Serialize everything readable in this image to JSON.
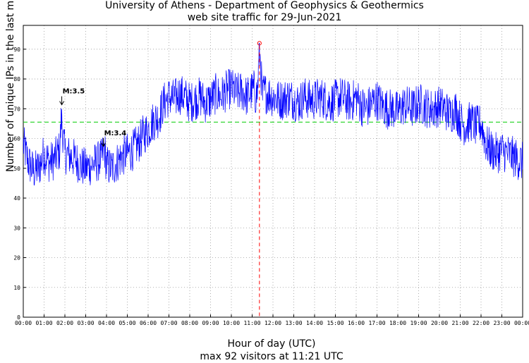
{
  "chart_data": {
    "type": "line",
    "title": "University of Athens - Department of Geophysics & Geothermics",
    "subtitle": "web site traffic for 29-Jun-2021",
    "xlabel": "Hour of day (UTC)",
    "ylabel": "Number of unique IPs in the last minute",
    "footer": "max 92 visitors at 11:21 UTC",
    "xlim": [
      0,
      24
    ],
    "ylim": [
      0,
      98
    ],
    "x_ticks": [
      "00:00",
      "01:00",
      "02:00",
      "03:00",
      "04:00",
      "05:00",
      "06:00",
      "07:00",
      "08:00",
      "09:00",
      "10:00",
      "11:00",
      "12:00",
      "13:00",
      "14:00",
      "15:00",
      "16:00",
      "17:00",
      "18:00",
      "19:00",
      "20:00",
      "21:00",
      "22:00",
      "23:00",
      "00:00"
    ],
    "y_ticks": [
      0,
      10,
      20,
      30,
      40,
      50,
      60,
      70,
      80,
      90
    ],
    "grid": true,
    "series": [
      {
        "color": "#0000ff",
        "x_hours": [
          0,
          0.25,
          0.5,
          0.75,
          1,
          1.25,
          1.5,
          1.75,
          1.83,
          2,
          2.25,
          2.5,
          2.75,
          3,
          3.25,
          3.5,
          3.75,
          3.9,
          4,
          4.25,
          4.5,
          4.75,
          5,
          5.25,
          5.5,
          5.75,
          6,
          6.25,
          6.5,
          6.75,
          7,
          7.25,
          7.5,
          7.75,
          8,
          8.25,
          8.5,
          8.75,
          9,
          9.25,
          9.5,
          9.75,
          10,
          10.25,
          10.5,
          10.75,
          11,
          11.25,
          11.35,
          11.5,
          11.75,
          12,
          12.25,
          12.5,
          12.75,
          13,
          13.25,
          13.5,
          13.75,
          14,
          14.25,
          14.5,
          14.75,
          15,
          15.25,
          15.5,
          15.75,
          16,
          16.25,
          16.5,
          16.75,
          17,
          17.25,
          17.5,
          17.75,
          18,
          18.25,
          18.5,
          18.75,
          19,
          19.25,
          19.5,
          19.75,
          20,
          20.25,
          20.5,
          20.75,
          21,
          21.25,
          21.5,
          21.75,
          22,
          22.25,
          22.5,
          22.75,
          23,
          23.25,
          23.5,
          23.75,
          24
        ],
        "values": [
          58,
          52,
          49,
          50,
          55,
          52,
          53,
          56,
          67,
          55,
          54,
          53,
          51,
          50,
          51,
          52,
          53,
          57,
          51,
          50,
          52,
          54,
          55,
          56,
          58,
          61,
          63,
          66,
          67,
          72,
          74,
          73,
          75,
          74,
          72,
          73,
          74,
          72,
          73,
          75,
          74,
          76,
          77,
          75,
          76,
          74,
          76,
          77,
          92,
          76,
          75,
          74,
          73,
          73,
          74,
          73,
          72,
          74,
          73,
          73,
          74,
          73,
          72,
          73,
          74,
          73,
          72,
          74,
          71,
          70,
          72,
          73,
          71,
          70,
          70,
          69,
          71,
          71,
          70,
          72,
          71,
          70,
          70,
          71,
          70,
          68,
          70,
          66,
          64,
          66,
          64,
          65,
          58,
          56,
          55,
          56,
          55,
          54,
          53,
          52
        ],
        "noise_amplitude": 7
      }
    ],
    "mean_line": {
      "value": 65.5,
      "color": "#00cc00"
    },
    "max_marker": {
      "hour": 11.35,
      "value": 92,
      "color": "#ff0000"
    },
    "annotations": [
      {
        "label": "M:3.5",
        "hour": 1.85,
        "value": 73
      },
      {
        "label": "M:3.4",
        "hour": 3.85,
        "value": 59
      }
    ]
  }
}
